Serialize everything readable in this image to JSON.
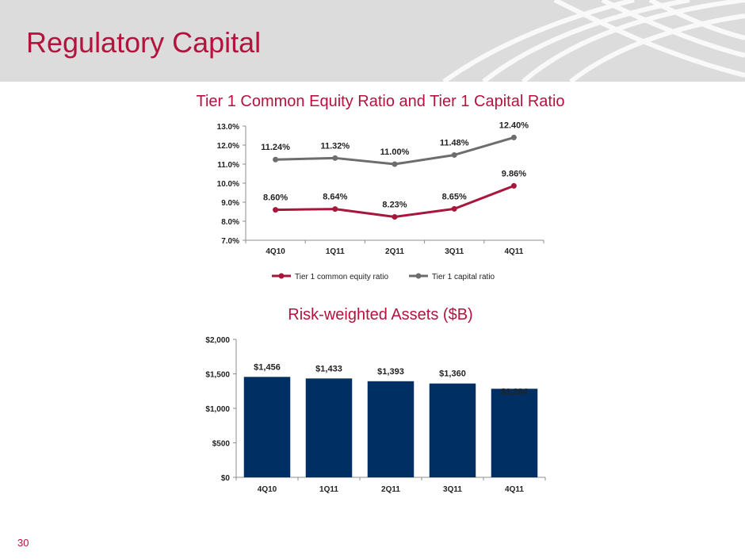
{
  "page": {
    "title": "Regulatory Capital",
    "page_number": "30"
  },
  "colors": {
    "brand_red": "#b5123e",
    "series_red": "#a8163c",
    "series_gray": "#6d6d6d",
    "bar_navy": "#003063",
    "header_gray": "#dcdcdc"
  },
  "chart_data": [
    {
      "type": "line",
      "title": "Tier 1 Common Equity Ratio and Tier 1 Capital Ratio",
      "categories": [
        "4Q10",
        "1Q11",
        "2Q11",
        "3Q11",
        "4Q11"
      ],
      "ylim": [
        7.0,
        13.0
      ],
      "yticks": [
        "7.0%",
        "8.0%",
        "9.0%",
        "10.0%",
        "11.0%",
        "12.0%",
        "13.0%"
      ],
      "grid": false,
      "legend": "bottom",
      "series": [
        {
          "name": "Tier 1 common equity ratio",
          "values": [
            8.6,
            8.64,
            8.23,
            8.65,
            9.86
          ],
          "labels": [
            "8.60%",
            "8.64%",
            "8.23%",
            "8.65%",
            "9.86%"
          ]
        },
        {
          "name": "Tier 1 capital ratio",
          "values": [
            11.24,
            11.32,
            11.0,
            11.48,
            12.4
          ],
          "labels": [
            "11.24%",
            "11.32%",
            "11.00%",
            "11.48%",
            "12.40%"
          ]
        }
      ]
    },
    {
      "type": "bar",
      "title": "Risk-weighted Assets ($B)",
      "categories": [
        "4Q10",
        "1Q11",
        "2Q11",
        "3Q11",
        "4Q11"
      ],
      "values": [
        1456,
        1433,
        1393,
        1360,
        1284
      ],
      "labels": [
        "$1,456",
        "$1,433",
        "$1,393",
        "$1,360",
        "$1,284"
      ],
      "ylim": [
        0,
        2000
      ],
      "yticks": [
        "$0",
        "$500",
        "$1,000",
        "$1,500",
        "$2,000"
      ],
      "grid": false
    }
  ]
}
